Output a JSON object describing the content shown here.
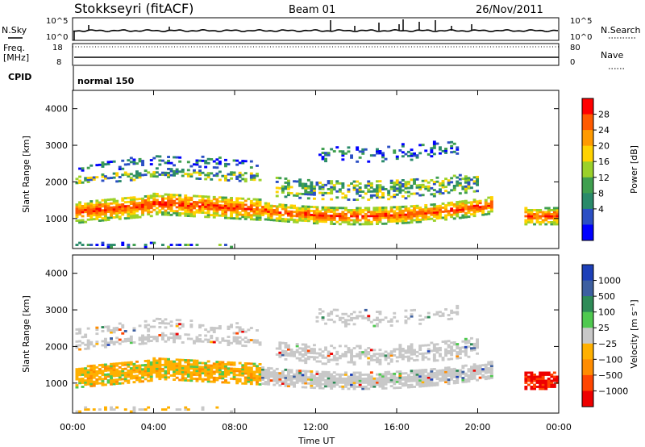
{
  "header": {
    "station": "Stokkseyri (fitACF)",
    "beam": "Beam 01",
    "date": "26/Nov/2011"
  },
  "status_panels": {
    "nsky_label": "N.Sky",
    "nsearch_label": "N.Search",
    "noise_ticks_left": [
      "10^5",
      "10^0"
    ],
    "noise_ticks_right": [
      "10^5",
      "10^0"
    ],
    "freq_label_top": "Freq.",
    "freq_label_unit": "[MHz]",
    "freq_ticks": [
      "18",
      "8"
    ],
    "nave_label": "Nave",
    "nave_ticks": [
      "80",
      "0"
    ],
    "cpid_label": "CPID",
    "cpid_value": "normal 150"
  },
  "time_axis": {
    "label": "Time UT",
    "ticks": [
      "00:00",
      "04:00",
      "08:00",
      "12:00",
      "16:00",
      "20:00",
      "00:00"
    ]
  },
  "chart_data": [
    {
      "type": "heatmap",
      "name": "power",
      "x_range_hours": [
        0,
        24
      ],
      "ylabel": "Slant Range [km]",
      "yticks": [
        "4000",
        "3000",
        "2000",
        "1000"
      ],
      "ylim": [
        180,
        4500
      ],
      "colorbar": {
        "label": "Power [dB]",
        "ticks": [
          "28",
          "24",
          "20",
          "16",
          "12",
          "8",
          "4"
        ],
        "colors": [
          "#ff0000",
          "#ff5a00",
          "#ff9a00",
          "#ffd200",
          "#9bd12a",
          "#3f9f4f",
          "#2a8a6a",
          "#2b4fc4",
          "#0000ff"
        ]
      }
    },
    {
      "type": "heatmap",
      "name": "velocity",
      "x_range_hours": [
        0,
        24
      ],
      "ylabel": "Slant Range [km]",
      "yticks": [
        "4000",
        "3000",
        "2000",
        "1000"
      ],
      "ylim": [
        180,
        4500
      ],
      "colorbar": {
        "label": "Velocity [m s⁻¹]",
        "ticks": [
          "1000",
          "500",
          "100",
          "25",
          "−25",
          "−100",
          "−500",
          "−1000"
        ],
        "colors": [
          "#1c3fb8",
          "#3d5fa0",
          "#2e8b57",
          "#4fc94f",
          "#c8c8c8",
          "#ffb000",
          "#ff8c00",
          "#ff4500",
          "#ee0000"
        ]
      }
    }
  ]
}
